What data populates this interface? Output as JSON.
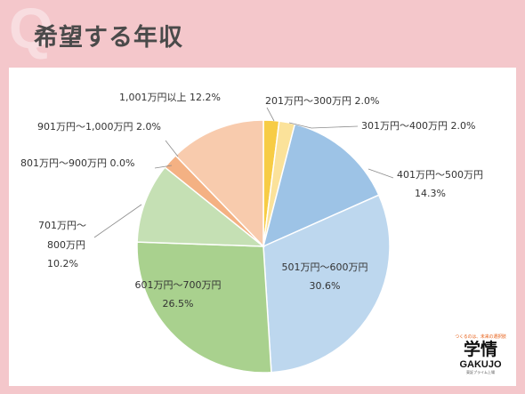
{
  "header": {
    "q_mark": "Q",
    "title": "希望する年収"
  },
  "colors": {
    "background": "#f4c7cb",
    "panel": "#ffffff",
    "title_text": "#4a4a4a",
    "logo_accent": "#e8641e"
  },
  "chart_data": {
    "type": "pie",
    "title": "",
    "start_angle_deg": 0,
    "direction": "clockwise",
    "legend": "none",
    "slices": [
      {
        "label": "201万円〜300万円",
        "value": 2.0,
        "value_text": "2.0%",
        "color": "#f7cc45",
        "label_position": "outside"
      },
      {
        "label": "301万円〜400万円",
        "value": 2.0,
        "value_text": "2.0%",
        "color": "#fbe29a",
        "label_position": "outside"
      },
      {
        "label": "401万円〜500万円",
        "value": 14.3,
        "value_text": "14.3%",
        "color": "#9dc3e6",
        "label_position": "outside"
      },
      {
        "label": "501万円〜600万円",
        "value": 30.6,
        "value_text": "30.6%",
        "color": "#bdd7ee",
        "label_position": "inside"
      },
      {
        "label": "601万円〜700万円",
        "value": 26.5,
        "value_text": "26.5%",
        "color": "#a9d18e",
        "label_position": "inside"
      },
      {
        "label": "701万円〜800万円",
        "label_lines": [
          "701万円〜",
          "800万円"
        ],
        "value": 10.2,
        "value_text": "10.2%",
        "color": "#c5e0b4",
        "label_position": "outside"
      },
      {
        "label": "801万円〜900万円",
        "value": 0.0,
        "value_text": "0.0%",
        "color": "#f8cbad",
        "label_position": "outside"
      },
      {
        "label": "901万円〜1,000万円",
        "value": 2.0,
        "value_text": "2.0%",
        "color": "#f4b183",
        "label_position": "outside"
      },
      {
        "label": "1,001万円以上",
        "value": 12.2,
        "value_text": "12.2%",
        "color": "#f8cbad",
        "label_position": "outside"
      }
    ]
  },
  "logo": {
    "tagline": "つくるのは、未来の選択肢",
    "kanji": "学情",
    "name": "GAKUJO",
    "sub": "東証プライム上場"
  }
}
